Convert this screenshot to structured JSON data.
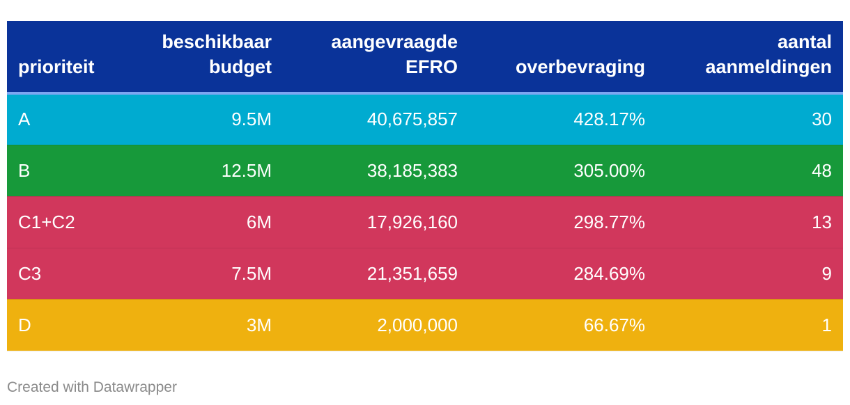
{
  "chart_data": {
    "type": "table",
    "columns": [
      {
        "key": "prioriteit",
        "label_lines": [
          "prioriteit"
        ],
        "align": "left"
      },
      {
        "key": "budget",
        "label_lines": [
          "beschikbaar",
          "budget"
        ],
        "align": "right"
      },
      {
        "key": "efro",
        "label_lines": [
          "aangevraagde",
          "EFRO"
        ],
        "align": "right"
      },
      {
        "key": "overbevraging",
        "label_lines": [
          "overbevraging"
        ],
        "align": "right"
      },
      {
        "key": "aanmeldingen",
        "label_lines": [
          "aantal",
          "aanmeldingen"
        ],
        "align": "right"
      }
    ],
    "header_color": "#0a3399",
    "rows": [
      {
        "color": "#00abd0",
        "cells": [
          "A",
          "9.5M",
          "40,675,857",
          "428.17%",
          "30"
        ]
      },
      {
        "color": "#17993a",
        "cells": [
          "B",
          "12.5M",
          "38,185,383",
          "305.00%",
          "48"
        ]
      },
      {
        "color": "#d1375c",
        "cells": [
          "C1+C2",
          "6M",
          "17,926,160",
          "298.77%",
          "13"
        ]
      },
      {
        "color": "#d1375c",
        "cells": [
          "C3",
          "7.5M",
          "21,351,659",
          "284.69%",
          "9"
        ]
      },
      {
        "color": "#efb10f",
        "cells": [
          "D",
          "3M",
          "2,000,000",
          "66.67%",
          "1"
        ]
      }
    ]
  },
  "footer": {
    "credit": "Created with Datawrapper"
  }
}
